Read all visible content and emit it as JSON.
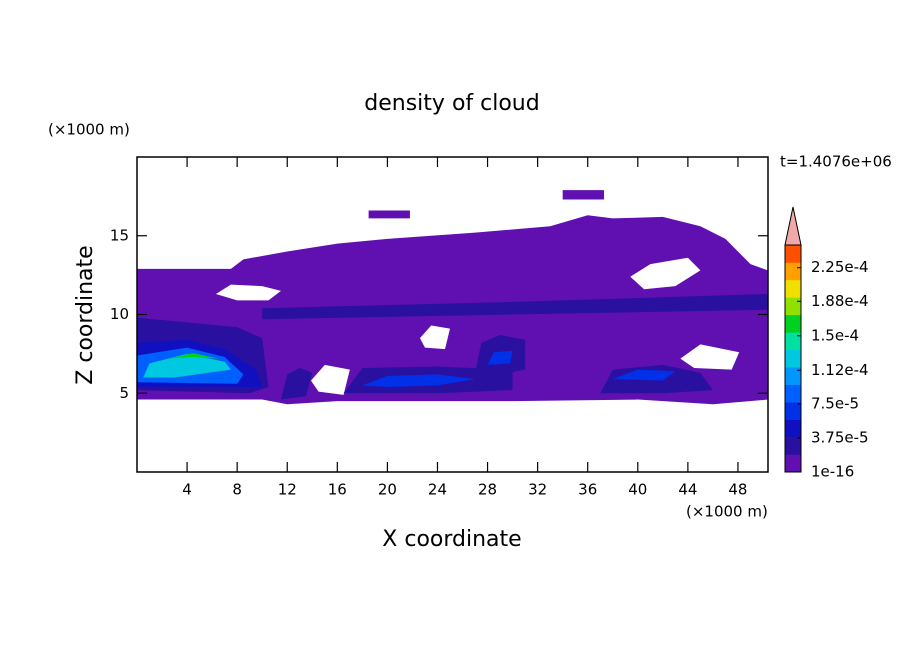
{
  "chart_data": {
    "type": "contour",
    "title": "density of cloud",
    "xlabel": "X coordinate",
    "ylabel": "Z coordinate",
    "xunit": "(×1000 m)",
    "yunit": "(×1000 m)",
    "time_label": "t=1.4076e+06",
    "xlim": [
      0,
      50.4
    ],
    "ylim": [
      0,
      20
    ],
    "xticks": [
      4,
      8,
      12,
      16,
      20,
      24,
      28,
      32,
      36,
      40,
      44,
      48
    ],
    "yticks": [
      5,
      10,
      15
    ],
    "colorbar_lim": [
      0,
      0.00025
    ],
    "colorbar_ticks": [
      {
        "value": 1e-16,
        "label": "1e-16"
      },
      {
        "value": 3.75e-05,
        "label": "3.75e-5"
      },
      {
        "value": 7.5e-05,
        "label": "7.5e-5"
      },
      {
        "value": 0.000112,
        "label": "1.12e-4"
      },
      {
        "value": 0.00015,
        "label": "1.5e-4"
      },
      {
        "value": 0.000188,
        "label": "1.88e-4"
      },
      {
        "value": 0.000225,
        "label": "2.25e-4"
      }
    ],
    "colors": [
      "#6010b0",
      "#2a10a0",
      "#1010c0",
      "#0030e8",
      "#0060ff",
      "#0096ff",
      "#00c8e0",
      "#00e0a0",
      "#00d020",
      "#90e000",
      "#f0e000",
      "#ffa000",
      "#ff5000"
    ],
    "over_color": "#f0a8a8",
    "regions": [
      {
        "level": 0,
        "x": [
          0,
          0,
          7.5,
          8.5,
          12,
          16,
          20,
          27,
          33,
          36,
          38,
          42,
          45,
          47,
          49,
          50.4,
          50.4,
          46,
          40,
          30,
          16,
          12,
          10,
          0
        ],
        "y": [
          4.6,
          12.9,
          12.9,
          13.5,
          14,
          14.5,
          14.8,
          15.2,
          15.6,
          16.3,
          16.1,
          16.2,
          15.6,
          14.8,
          13.2,
          12.8,
          4.6,
          4.3,
          4.6,
          4.5,
          4.5,
          4.3,
          4.6,
          4.6
        ]
      },
      {
        "level": 0,
        "x": [
          18.5,
          18.5,
          21.8,
          21.8
        ],
        "y": [
          16.1,
          16.6,
          16.6,
          16.1
        ]
      },
      {
        "level": 0,
        "x": [
          34,
          34,
          37.3,
          37.3
        ],
        "y": [
          17.3,
          17.9,
          17.9,
          17.3
        ]
      },
      {
        "level": null,
        "x": [
          6.3,
          7.5,
          10,
          11.5,
          10.5,
          8
        ],
        "y": [
          11.3,
          11.9,
          11.8,
          11.5,
          10.9,
          10.9
        ]
      },
      {
        "level": null,
        "x": [
          39.4,
          41,
          44,
          45,
          43,
          40.5
        ],
        "y": [
          12.4,
          13.2,
          13.6,
          12.8,
          11.8,
          11.6
        ]
      },
      {
        "level": null,
        "x": [
          22.6,
          23.5,
          25,
          24.6,
          23
        ],
        "y": [
          8.5,
          9.3,
          9.1,
          7.8,
          7.9
        ]
      },
      {
        "level": null,
        "x": [
          13.9,
          15,
          17,
          16.5,
          14.5
        ],
        "y": [
          5.8,
          6.8,
          6.5,
          4.9,
          5.1
        ]
      },
      {
        "level": null,
        "x": [
          43.4,
          45,
          48.1,
          47.5,
          44.5
        ],
        "y": [
          7.2,
          8.1,
          7.6,
          6.5,
          6.6
        ]
      },
      {
        "level": 1,
        "x": [
          10,
          30,
          50.4,
          50.4,
          30,
          10
        ],
        "y": [
          9.7,
          10,
          10.3,
          11.3,
          10.8,
          10.4
        ]
      },
      {
        "level": 1,
        "x": [
          0,
          0,
          4,
          8,
          10,
          10.5,
          9
        ],
        "y": [
          5.2,
          9.8,
          9.5,
          9.2,
          8.5,
          5.4,
          5
        ]
      },
      {
        "level": 1,
        "x": [
          11.5,
          12,
          13,
          14,
          13.5
        ],
        "y": [
          4.6,
          6.2,
          6.6,
          6.3,
          4.8
        ]
      },
      {
        "level": 1,
        "x": [
          16.5,
          18,
          24,
          30,
          30,
          24
        ],
        "y": [
          5,
          6.6,
          6.7,
          6.5,
          5.2,
          5
        ]
      },
      {
        "level": 1,
        "x": [
          27,
          27.5,
          29,
          31,
          31,
          29
        ],
        "y": [
          6.3,
          8.2,
          8.7,
          8.4,
          6.5,
          6.2
        ]
      },
      {
        "level": 1,
        "x": [
          37,
          38,
          42,
          45,
          46,
          42
        ],
        "y": [
          5,
          6.5,
          6.8,
          6.3,
          5.2,
          5
        ]
      },
      {
        "level": 2,
        "x": [
          0,
          0,
          4,
          7,
          9.5,
          10
        ],
        "y": [
          5.4,
          8.2,
          8.4,
          7.8,
          6.5,
          5.4
        ]
      },
      {
        "level": 3,
        "x": [
          18,
          20,
          24,
          27,
          24,
          20
        ],
        "y": [
          5.5,
          6.1,
          6.2,
          5.9,
          5.5,
          5.4
        ]
      },
      {
        "level": 3,
        "x": [
          28,
          28.5,
          30,
          29.8
        ],
        "y": [
          6.8,
          7.6,
          7.7,
          6.9
        ]
      },
      {
        "level": 3,
        "x": [
          38,
          40,
          43,
          42
        ],
        "y": [
          5.9,
          6.5,
          6.4,
          5.8
        ]
      },
      {
        "level": 4,
        "x": [
          0,
          0,
          4,
          7,
          8.5,
          8
        ],
        "y": [
          5.7,
          7.4,
          7.9,
          7.3,
          6.2,
          5.6
        ]
      },
      {
        "level": 6,
        "x": [
          0.5,
          1,
          4,
          7,
          7.5,
          3
        ],
        "y": [
          6,
          6.9,
          7.5,
          7,
          6.5,
          6
        ]
      },
      {
        "level": 8,
        "x": [
          2.5,
          4.5,
          6.5,
          4.5
        ],
        "y": [
          7.2,
          7.55,
          7.2,
          7.3
        ]
      }
    ]
  }
}
